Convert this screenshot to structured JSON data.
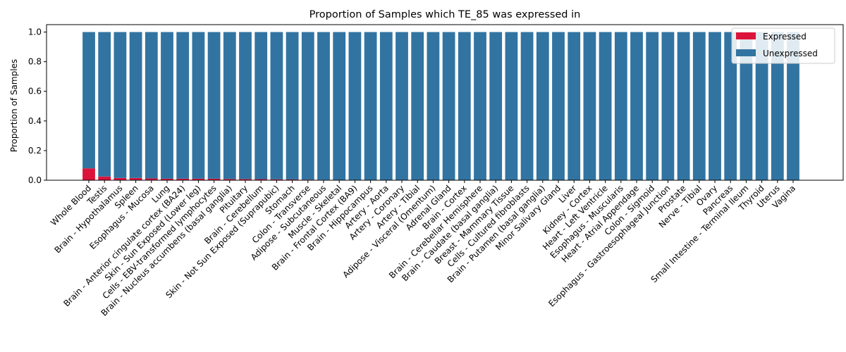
{
  "chart_data": {
    "type": "bar",
    "stacked": true,
    "title": "Proportion of Samples which TE_85 was expressed in",
    "xlabel": "",
    "ylabel": "Proportion of Samples",
    "ylim": [
      0,
      1.05
    ],
    "yticks": [
      "0.0",
      "0.2",
      "0.4",
      "0.6",
      "0.8",
      "1.0"
    ],
    "legend_position": "top-right",
    "categories": [
      "Whole Blood",
      "Testis",
      "Brain - Hypothalamus",
      "Spleen",
      "Esophagus - Mucosa",
      "Lung",
      "Brain - Anterior cingulate cortex (BA24)",
      "Skin - Sun Exposed (Lower leg)",
      "Cells - EBV-transformed lymphocytes",
      "Brain - Nucleus accumbens (basal ganglia)",
      "Pituitary",
      "Brain - Cerebellum",
      "Skin - Not Sun Exposed (Suprapubic)",
      "Stomach",
      "Colon - Transverse",
      "Adipose - Subcutaneous",
      "Muscle - Skeletal",
      "Brain - Frontal Cortex (BA9)",
      "Brain - Hippocampus",
      "Artery - Aorta",
      "Artery - Coronary",
      "Artery - Tibial",
      "Adipose - Visceral (Omentum)",
      "Adrenal Gland",
      "Brain - Cortex",
      "Brain - Cerebellar Hemisphere",
      "Brain - Caudate (basal ganglia)",
      "Breast - Mammary Tissue",
      "Cells - Cultured fibroblasts",
      "Brain - Putamen (basal ganglia)",
      "Minor Salivary Gland",
      "Liver",
      "Kidney - Cortex",
      "Heart - Left Ventricle",
      "Esophagus - Muscularis",
      "Heart - Atrial Appendage",
      "Colon - Sigmoid",
      "Esophagus - Gastroesophageal Junction",
      "Prostate",
      "Nerve - Tibial",
      "Ovary",
      "Pancreas",
      "Small Intestine - Terminal Ileum",
      "Thyroid",
      "Uterus",
      "Vagina"
    ],
    "series": [
      {
        "name": "Expressed",
        "color": "#dc143c",
        "values": [
          0.08,
          0.025,
          0.015,
          0.015,
          0.012,
          0.01,
          0.01,
          0.01,
          0.01,
          0.008,
          0.008,
          0.007,
          0.006,
          0.005,
          0.004,
          0.003,
          0,
          0,
          0,
          0,
          0,
          0,
          0,
          0,
          0,
          0,
          0,
          0,
          0,
          0,
          0,
          0,
          0,
          0,
          0,
          0,
          0,
          0,
          0,
          0,
          0,
          0,
          0,
          0,
          0,
          0
        ]
      },
      {
        "name": "Unexpressed",
        "color": "#3274a1",
        "values": [
          0.92,
          0.975,
          0.985,
          0.985,
          0.988,
          0.99,
          0.99,
          0.99,
          0.99,
          0.992,
          0.992,
          0.993,
          0.994,
          0.995,
          0.996,
          0.997,
          1,
          1,
          1,
          1,
          1,
          1,
          1,
          1,
          1,
          1,
          1,
          1,
          1,
          1,
          1,
          1,
          1,
          1,
          1,
          1,
          1,
          1,
          1,
          1,
          1,
          1,
          1,
          1,
          1,
          1
        ]
      }
    ]
  }
}
